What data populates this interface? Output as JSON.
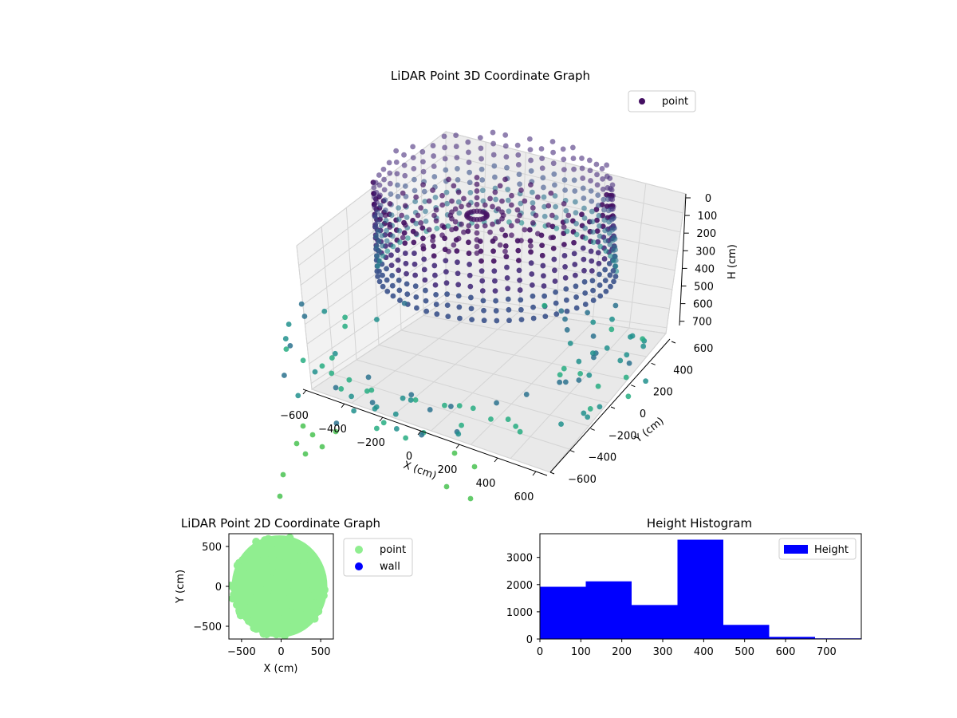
{
  "colors": {
    "point_3d_legend": "#440f62",
    "point_2d": "#90ee90",
    "wall": "#0000ff",
    "hist_bar": "#0000ff",
    "pane": "#f2f2f2",
    "grid": "#d9d9d9"
  },
  "chart_data": [
    {
      "type": "scatter3d",
      "title": "LiDAR Point 3D Coordinate Graph",
      "xlabel": "X (cm)",
      "ylabel": "Y (cm)",
      "zlabel": "H (cm)",
      "xticks": [
        "−600",
        "−400",
        "−200",
        "0",
        "200",
        "400",
        "600"
      ],
      "yticks": [
        "−600",
        "−400",
        "−200",
        "0",
        "200",
        "400",
        "600"
      ],
      "zticks": [
        "0",
        "100",
        "200",
        "300",
        "400",
        "500",
        "600",
        "700"
      ],
      "zaxis_inverted": true,
      "colormap": "viridis",
      "grid": true,
      "legend": {
        "position": "upper-right",
        "entries": [
          "point"
        ]
      },
      "description_series": {
        "name": "point",
        "ring_radius_cm": 560,
        "ring_height_range_cm": [
          50,
          450
        ],
        "inner_spokes": true,
        "scattered_ground_points": true
      }
    },
    {
      "type": "scatter",
      "title": "LiDAR Point 2D Coordinate Graph",
      "xlabel": "X (cm)",
      "ylabel": "Y (cm)",
      "xticks": [
        "−500",
        "0",
        "500"
      ],
      "yticks": [
        "500",
        "0",
        "−500"
      ],
      "xlim": [
        -660,
        660
      ],
      "ylim": [
        -660,
        660
      ],
      "legend": {
        "position": "outside-right",
        "entries": [
          "point",
          "wall"
        ]
      }
    },
    {
      "type": "bar",
      "title": "Height Histogram",
      "xlabel": "",
      "ylabel": "",
      "xlim": [
        0,
        785
      ],
      "ylim": [
        0,
        3870
      ],
      "xticks": [
        "0",
        "100",
        "200",
        "300",
        "400",
        "500",
        "600",
        "700"
      ],
      "yticks": [
        "0",
        "1000",
        "2000",
        "3000"
      ],
      "legend": {
        "position": "top-right",
        "entries": [
          "Height"
        ]
      },
      "series": [
        {
          "name": "Height",
          "bins": [
            [
              0,
              112
            ],
            [
              112,
              224
            ],
            [
              224,
              336
            ],
            [
              336,
              448
            ],
            [
              448,
              560
            ],
            [
              560,
              672
            ],
            [
              672,
              785
            ]
          ],
          "values": [
            1920,
            2120,
            1250,
            3650,
            520,
            80,
            25
          ]
        }
      ]
    }
  ]
}
